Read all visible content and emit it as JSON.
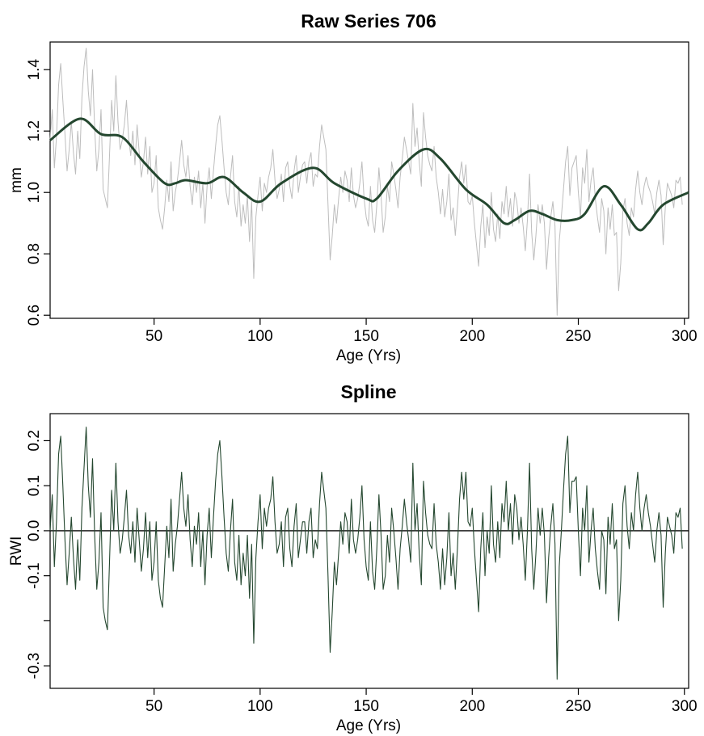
{
  "chart_data": [
    {
      "type": "line",
      "title": "Raw Series 706",
      "xlabel": "Age (Yrs)",
      "ylabel": "mm",
      "xlim": [
        1,
        302
      ],
      "ylim": [
        0.59,
        1.49
      ],
      "x_ticks": [
        50,
        100,
        150,
        200,
        250,
        300
      ],
      "y_ticks": [
        0.6,
        0.8,
        1.0,
        1.2,
        1.4
      ],
      "y_tick_labels": [
        "0.6",
        "0.8",
        "1.0",
        "1.2",
        "1.4"
      ],
      "grid": false,
      "series": [
        {
          "role": "raw",
          "color": "#bdbdbd",
          "x_start": 1,
          "values": [
            1.17,
            1.27,
            1.08,
            1.18,
            1.35,
            1.42,
            1.3,
            1.19,
            1.07,
            1.14,
            1.23,
            1.13,
            1.06,
            1.2,
            1.11,
            1.31,
            1.41,
            1.47,
            1.33,
            1.25,
            1.4,
            1.21,
            1.07,
            1.14,
            1.27,
            1.01,
            0.98,
            0.95,
            1.12,
            1.3,
            1.2,
            1.38,
            1.23,
            1.14,
            1.17,
            1.22,
            1.3,
            1.18,
            1.12,
            1.2,
            1.09,
            1.22,
            1.13,
            1.05,
            1.1,
            1.18,
            1.06,
            1.15,
            1.0,
            1.03,
            1.12,
            0.95,
            0.91,
            0.88,
            0.95,
            1.04,
            0.97,
            1.1,
            0.94,
            1.0,
            1.04,
            1.1,
            1.17,
            1.09,
            1.05,
            1.12,
            1.02,
            0.96,
            1.05,
            1.0,
            1.07,
            0.95,
            1.03,
            0.9,
            1.02,
            1.08,
            0.98,
            1.07,
            1.15,
            1.22,
            1.25,
            1.17,
            1.08,
            1.0,
            0.96,
            1.05,
            1.12,
            0.97,
            0.92,
            1.02,
            0.89,
            0.96,
            0.9,
            0.99,
            0.84,
            0.97,
            0.72,
            0.92,
            0.99,
            1.05,
            0.94,
            1.03,
            1.0,
            1.05,
            1.08,
            1.14,
            1.04,
            0.98,
            1.01,
            1.06,
            0.97,
            1.08,
            1.1,
            1.02,
            0.98,
            1.07,
            1.12,
            1.0,
            1.05,
            1.09,
            1.1,
            1.03,
            1.1,
            1.13,
            1.02,
            1.06,
            1.05,
            1.15,
            1.22,
            1.18,
            1.14,
            0.96,
            0.78,
            0.86,
            0.96,
            0.9,
            0.98,
            1.05,
            1.0,
            1.07,
            1.04,
            0.97,
            1.08,
            0.99,
            0.95,
            0.98,
            1.03,
            1.1,
            0.98,
            0.92,
            0.89,
            1.02,
            0.91,
            0.87,
            0.96,
            1.08,
            0.99,
            0.87,
            0.92,
            1.02,
            0.97,
            1.1,
            1.06,
            1.01,
            0.95,
            1.05,
            1.11,
            1.18,
            1.14,
            1.1,
            1.06,
            1.29,
            1.15,
            1.21,
            1.1,
            1.02,
            1.26,
            1.18,
            1.12,
            1.09,
            1.07,
            1.15,
            1.05,
            1.0,
            0.93,
            1.01,
            0.92,
            0.97,
            1.06,
            0.91,
            0.95,
            0.86,
            0.95,
            1.05,
            1.1,
            1.03,
            1.09,
            0.97,
            0.96,
            0.99,
            0.9,
            0.83,
            0.76,
            0.89,
            0.96,
            0.82,
            0.92,
            0.86,
            1.0,
            0.88,
            0.84,
            0.93,
            0.85,
            0.97,
            0.93,
            1.02,
            0.92,
            0.98,
            0.89,
            1.0,
            0.97,
            0.9,
            0.95,
            0.89,
            0.81,
            0.91,
            1.06,
            0.87,
            0.78,
            0.86,
            0.96,
            0.9,
            0.96,
            0.9,
            0.75,
            0.85,
            0.92,
            0.97,
            0.89,
            0.6,
            0.84,
            0.92,
            1.01,
            1.1,
            1.15,
            0.99,
            1.08,
            1.1,
            1.12,
            1.0,
            0.92,
            1.08,
            1.03,
            1.14,
            0.97,
            1.04,
            1.08,
            0.98,
            0.92,
            0.87,
            0.98,
            0.94,
            0.8,
            0.95,
            0.88,
            0.96,
            0.86,
            0.87,
            0.68,
            0.77,
            0.94,
            0.98,
            0.9,
            0.86,
            0.95,
            0.92,
            1.01,
            1.07,
            1.0,
            0.96,
            1.02,
            1.05,
            1.02,
            1.0,
            0.97,
            0.93,
            1.0,
            1.04,
            0.99,
            0.83,
            0.95,
            1.03,
            1.01,
            0.99,
            0.95,
            1.04,
            1.03,
            1.05,
            0.96
          ]
        },
        {
          "role": "spline",
          "color": "#24472f",
          "x": [
            1,
            15,
            25,
            35,
            45,
            55,
            60,
            65,
            75,
            83,
            92,
            100,
            110,
            125,
            135,
            150,
            155,
            165,
            177,
            185,
            197,
            207,
            215,
            220,
            227,
            233,
            240,
            247,
            253,
            262,
            270,
            278,
            283,
            290,
            302
          ],
          "y": [
            1.17,
            1.24,
            1.19,
            1.18,
            1.1,
            1.03,
            1.03,
            1.04,
            1.03,
            1.05,
            1.0,
            0.97,
            1.03,
            1.08,
            1.03,
            0.98,
            0.98,
            1.07,
            1.14,
            1.11,
            1.01,
            0.96,
            0.9,
            0.91,
            0.94,
            0.93,
            0.91,
            0.91,
            0.93,
            1.02,
            0.96,
            0.88,
            0.9,
            0.96,
            1.0
          ]
        }
      ]
    },
    {
      "type": "line",
      "title": "Spline",
      "xlabel": "Age (Yrs)",
      "ylabel": "RWI",
      "xlim": [
        1,
        302
      ],
      "ylim": [
        -0.35,
        0.26
      ],
      "x_ticks": [
        50,
        100,
        150,
        200,
        250,
        300
      ],
      "y_ticks": [
        -0.3,
        -0.2,
        -0.1,
        0.0,
        0.1,
        0.2
      ],
      "y_tick_labels": [
        "-0.3",
        "",
        "-0.1",
        "0.0",
        "0.1",
        "0.2"
      ],
      "reference_line": 0.0,
      "grid": false,
      "series": [
        {
          "role": "rwi",
          "color": "#24472f",
          "x_start": 1,
          "values": [
            0.0,
            0.08,
            -0.08,
            0.02,
            0.17,
            0.21,
            0.1,
            -0.02,
            -0.12,
            -0.05,
            0.03,
            -0.06,
            -0.13,
            -0.02,
            -0.11,
            0.05,
            0.14,
            0.23,
            0.1,
            0.03,
            0.16,
            -0.01,
            -0.13,
            -0.07,
            0.04,
            -0.17,
            -0.2,
            -0.22,
            -0.07,
            0.09,
            0.0,
            0.15,
            0.02,
            -0.05,
            -0.02,
            0.03,
            0.09,
            -0.01,
            -0.05,
            0.02,
            -0.07,
            0.05,
            -0.02,
            -0.09,
            -0.04,
            0.04,
            -0.06,
            0.02,
            -0.11,
            -0.07,
            0.02,
            -0.11,
            -0.15,
            -0.17,
            -0.08,
            0.01,
            -0.06,
            0.07,
            -0.09,
            -0.03,
            0.01,
            0.07,
            0.13,
            0.05,
            0.01,
            0.08,
            -0.02,
            -0.08,
            0.01,
            -0.03,
            0.04,
            -0.08,
            0.0,
            -0.12,
            -0.01,
            0.05,
            -0.06,
            0.03,
            0.11,
            0.17,
            0.2,
            0.12,
            0.03,
            -0.05,
            -0.09,
            0.0,
            0.07,
            -0.07,
            -0.11,
            -0.01,
            -0.12,
            -0.05,
            -0.1,
            -0.01,
            -0.15,
            -0.03,
            -0.25,
            -0.06,
            0.02,
            0.08,
            -0.04,
            0.05,
            0.01,
            0.05,
            0.07,
            0.12,
            0.02,
            -0.05,
            -0.03,
            0.02,
            -0.08,
            0.03,
            0.05,
            -0.04,
            -0.08,
            0.01,
            0.06,
            -0.06,
            -0.02,
            0.02,
            0.02,
            -0.05,
            0.02,
            0.05,
            -0.06,
            -0.02,
            -0.04,
            0.06,
            0.13,
            0.09,
            0.05,
            -0.1,
            -0.27,
            -0.18,
            -0.07,
            -0.12,
            -0.05,
            0.02,
            -0.03,
            0.04,
            0.02,
            -0.05,
            0.07,
            -0.02,
            -0.05,
            -0.02,
            0.03,
            0.1,
            -0.02,
            -0.08,
            -0.11,
            0.02,
            -0.09,
            -0.13,
            -0.04,
            0.08,
            -0.01,
            -0.13,
            -0.1,
            -0.01,
            -0.07,
            0.05,
            0.0,
            -0.06,
            -0.13,
            -0.04,
            0.01,
            0.07,
            0.02,
            -0.02,
            -0.07,
            0.15,
            0.0,
            0.06,
            -0.05,
            -0.12,
            0.11,
            0.04,
            -0.01,
            -0.03,
            -0.04,
            0.06,
            -0.03,
            -0.07,
            -0.13,
            -0.04,
            -0.12,
            -0.06,
            0.04,
            -0.1,
            -0.05,
            -0.13,
            -0.04,
            0.07,
            0.13,
            0.07,
            0.13,
            0.02,
            0.01,
            0.05,
            -0.04,
            -0.11,
            -0.18,
            -0.04,
            0.04,
            -0.1,
            0.0,
            -0.05,
            0.1,
            -0.03,
            -0.07,
            0.02,
            -0.06,
            0.06,
            0.02,
            0.11,
            0.0,
            0.06,
            -0.03,
            0.08,
            0.05,
            -0.02,
            0.03,
            -0.03,
            -0.11,
            0.0,
            0.15,
            -0.04,
            -0.13,
            -0.05,
            0.05,
            -0.01,
            0.05,
            -0.01,
            -0.16,
            -0.06,
            0.01,
            0.06,
            -0.03,
            -0.33,
            -0.08,
            0.0,
            0.09,
            0.17,
            0.21,
            0.04,
            0.11,
            0.11,
            0.12,
            0.0,
            -0.1,
            0.05,
            0.0,
            0.1,
            -0.07,
            0.0,
            0.05,
            -0.04,
            -0.09,
            -0.13,
            0.0,
            -0.02,
            -0.14,
            0.03,
            -0.03,
            0.06,
            -0.04,
            -0.02,
            -0.2,
            -0.11,
            0.06,
            0.1,
            0.01,
            -0.04,
            0.04,
            0.0,
            0.08,
            0.13,
            0.05,
            0.0,
            0.05,
            0.08,
            0.04,
            0.01,
            -0.03,
            -0.07,
            0.0,
            0.04,
            -0.01,
            -0.17,
            -0.05,
            0.03,
            0.01,
            -0.01,
            -0.05,
            0.04,
            0.03,
            0.05,
            -0.04
          ]
        }
      ]
    }
  ]
}
